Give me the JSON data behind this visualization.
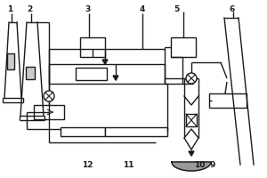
{
  "line_color": "#1a1a1a",
  "line_width": 1.0,
  "label_fontsize": 6.5
}
